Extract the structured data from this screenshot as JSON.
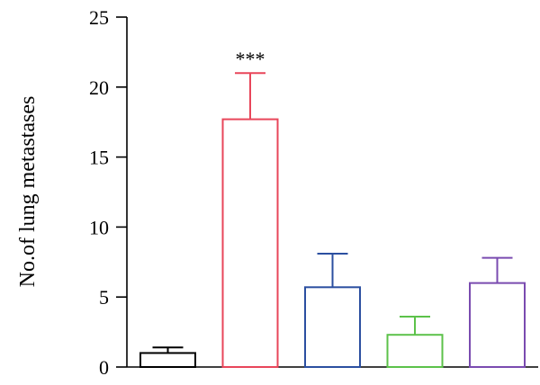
{
  "chart_data": {
    "type": "bar",
    "title": "",
    "xlabel": "",
    "ylabel": "No.of lung metastases",
    "ylim": [
      0,
      25
    ],
    "yticks": [
      0,
      5,
      10,
      15,
      20,
      25
    ],
    "grid": false,
    "legend": "none",
    "bars": [
      {
        "value": 1.0,
        "error": 0.4,
        "color": "#000000",
        "annotation": ""
      },
      {
        "value": 17.7,
        "error": 3.3,
        "color": "#e8465a",
        "annotation": "***"
      },
      {
        "value": 5.7,
        "error": 2.4,
        "color": "#2b4fa0",
        "annotation": ""
      },
      {
        "value": 2.3,
        "error": 1.3,
        "color": "#5cc24a",
        "annotation": ""
      },
      {
        "value": 6.0,
        "error": 1.8,
        "color": "#7a4bb0",
        "annotation": ""
      }
    ]
  }
}
